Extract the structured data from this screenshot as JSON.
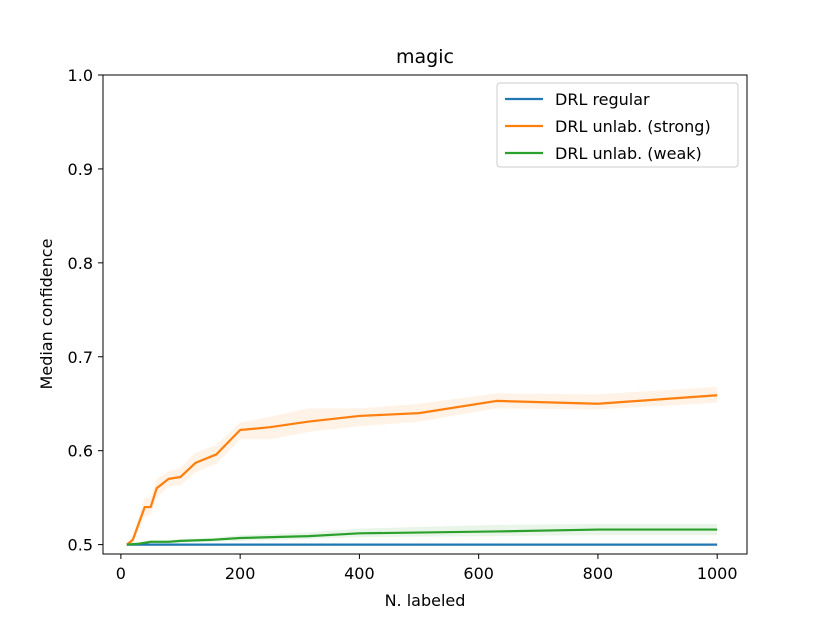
{
  "chart_data": {
    "type": "line",
    "title": "magic",
    "xlabel": "N. labeled",
    "ylabel": "Median confidence",
    "xlim": [
      -30,
      1050
    ],
    "ylim": [
      0.49,
      1.0
    ],
    "xticks": [
      0,
      200,
      400,
      600,
      800,
      1000
    ],
    "yticks": [
      0.5,
      0.6,
      0.7,
      0.8,
      0.9,
      1.0
    ],
    "xtick_labels": [
      "0",
      "200",
      "400",
      "600",
      "800",
      "1000"
    ],
    "ytick_labels": [
      "0.5",
      "0.6",
      "0.7",
      "0.8",
      "0.9",
      "1.0"
    ],
    "grid": false,
    "legend_position": "top-right",
    "series": [
      {
        "name": "DRL regular",
        "color": "#1f77b4",
        "x": [
          10,
          1000
        ],
        "y": [
          0.5,
          0.5
        ],
        "band_low": [
          0.5,
          0.5
        ],
        "band_high": [
          0.5,
          0.5
        ]
      },
      {
        "name": "DRL unlab. (strong)",
        "color": "#ff7f0e",
        "x": [
          10,
          20,
          40,
          50,
          60,
          80,
          100,
          125,
          160,
          200,
          250,
          315,
          400,
          500,
          630,
          800,
          1000
        ],
        "y": [
          0.5,
          0.505,
          0.54,
          0.54,
          0.56,
          0.57,
          0.572,
          0.587,
          0.596,
          0.622,
          0.625,
          0.631,
          0.637,
          0.64,
          0.653,
          0.65,
          0.659
        ],
        "band_low": [
          0.5,
          0.502,
          0.53,
          0.532,
          0.55,
          0.562,
          0.563,
          0.577,
          0.586,
          0.612,
          0.612,
          0.62,
          0.626,
          0.631,
          0.645,
          0.644,
          0.651
        ],
        "band_high": [
          0.5,
          0.51,
          0.55,
          0.55,
          0.57,
          0.578,
          0.582,
          0.598,
          0.606,
          0.63,
          0.636,
          0.645,
          0.645,
          0.65,
          0.661,
          0.66,
          0.668
        ]
      },
      {
        "name": "DRL unlab. (weak)",
        "color": "#2ca02c",
        "x": [
          10,
          30,
          50,
          80,
          100,
          150,
          200,
          315,
          400,
          630,
          800,
          1000
        ],
        "y": [
          0.5,
          0.501,
          0.503,
          0.503,
          0.504,
          0.505,
          0.507,
          0.509,
          0.512,
          0.514,
          0.516,
          0.516
        ],
        "band_low": [
          0.499,
          0.5,
          0.501,
          0.501,
          0.502,
          0.503,
          0.504,
          0.506,
          0.508,
          0.509,
          0.51,
          0.51
        ],
        "band_high": [
          0.501,
          0.502,
          0.505,
          0.505,
          0.506,
          0.507,
          0.51,
          0.513,
          0.517,
          0.521,
          0.522,
          0.522
        ]
      }
    ]
  }
}
